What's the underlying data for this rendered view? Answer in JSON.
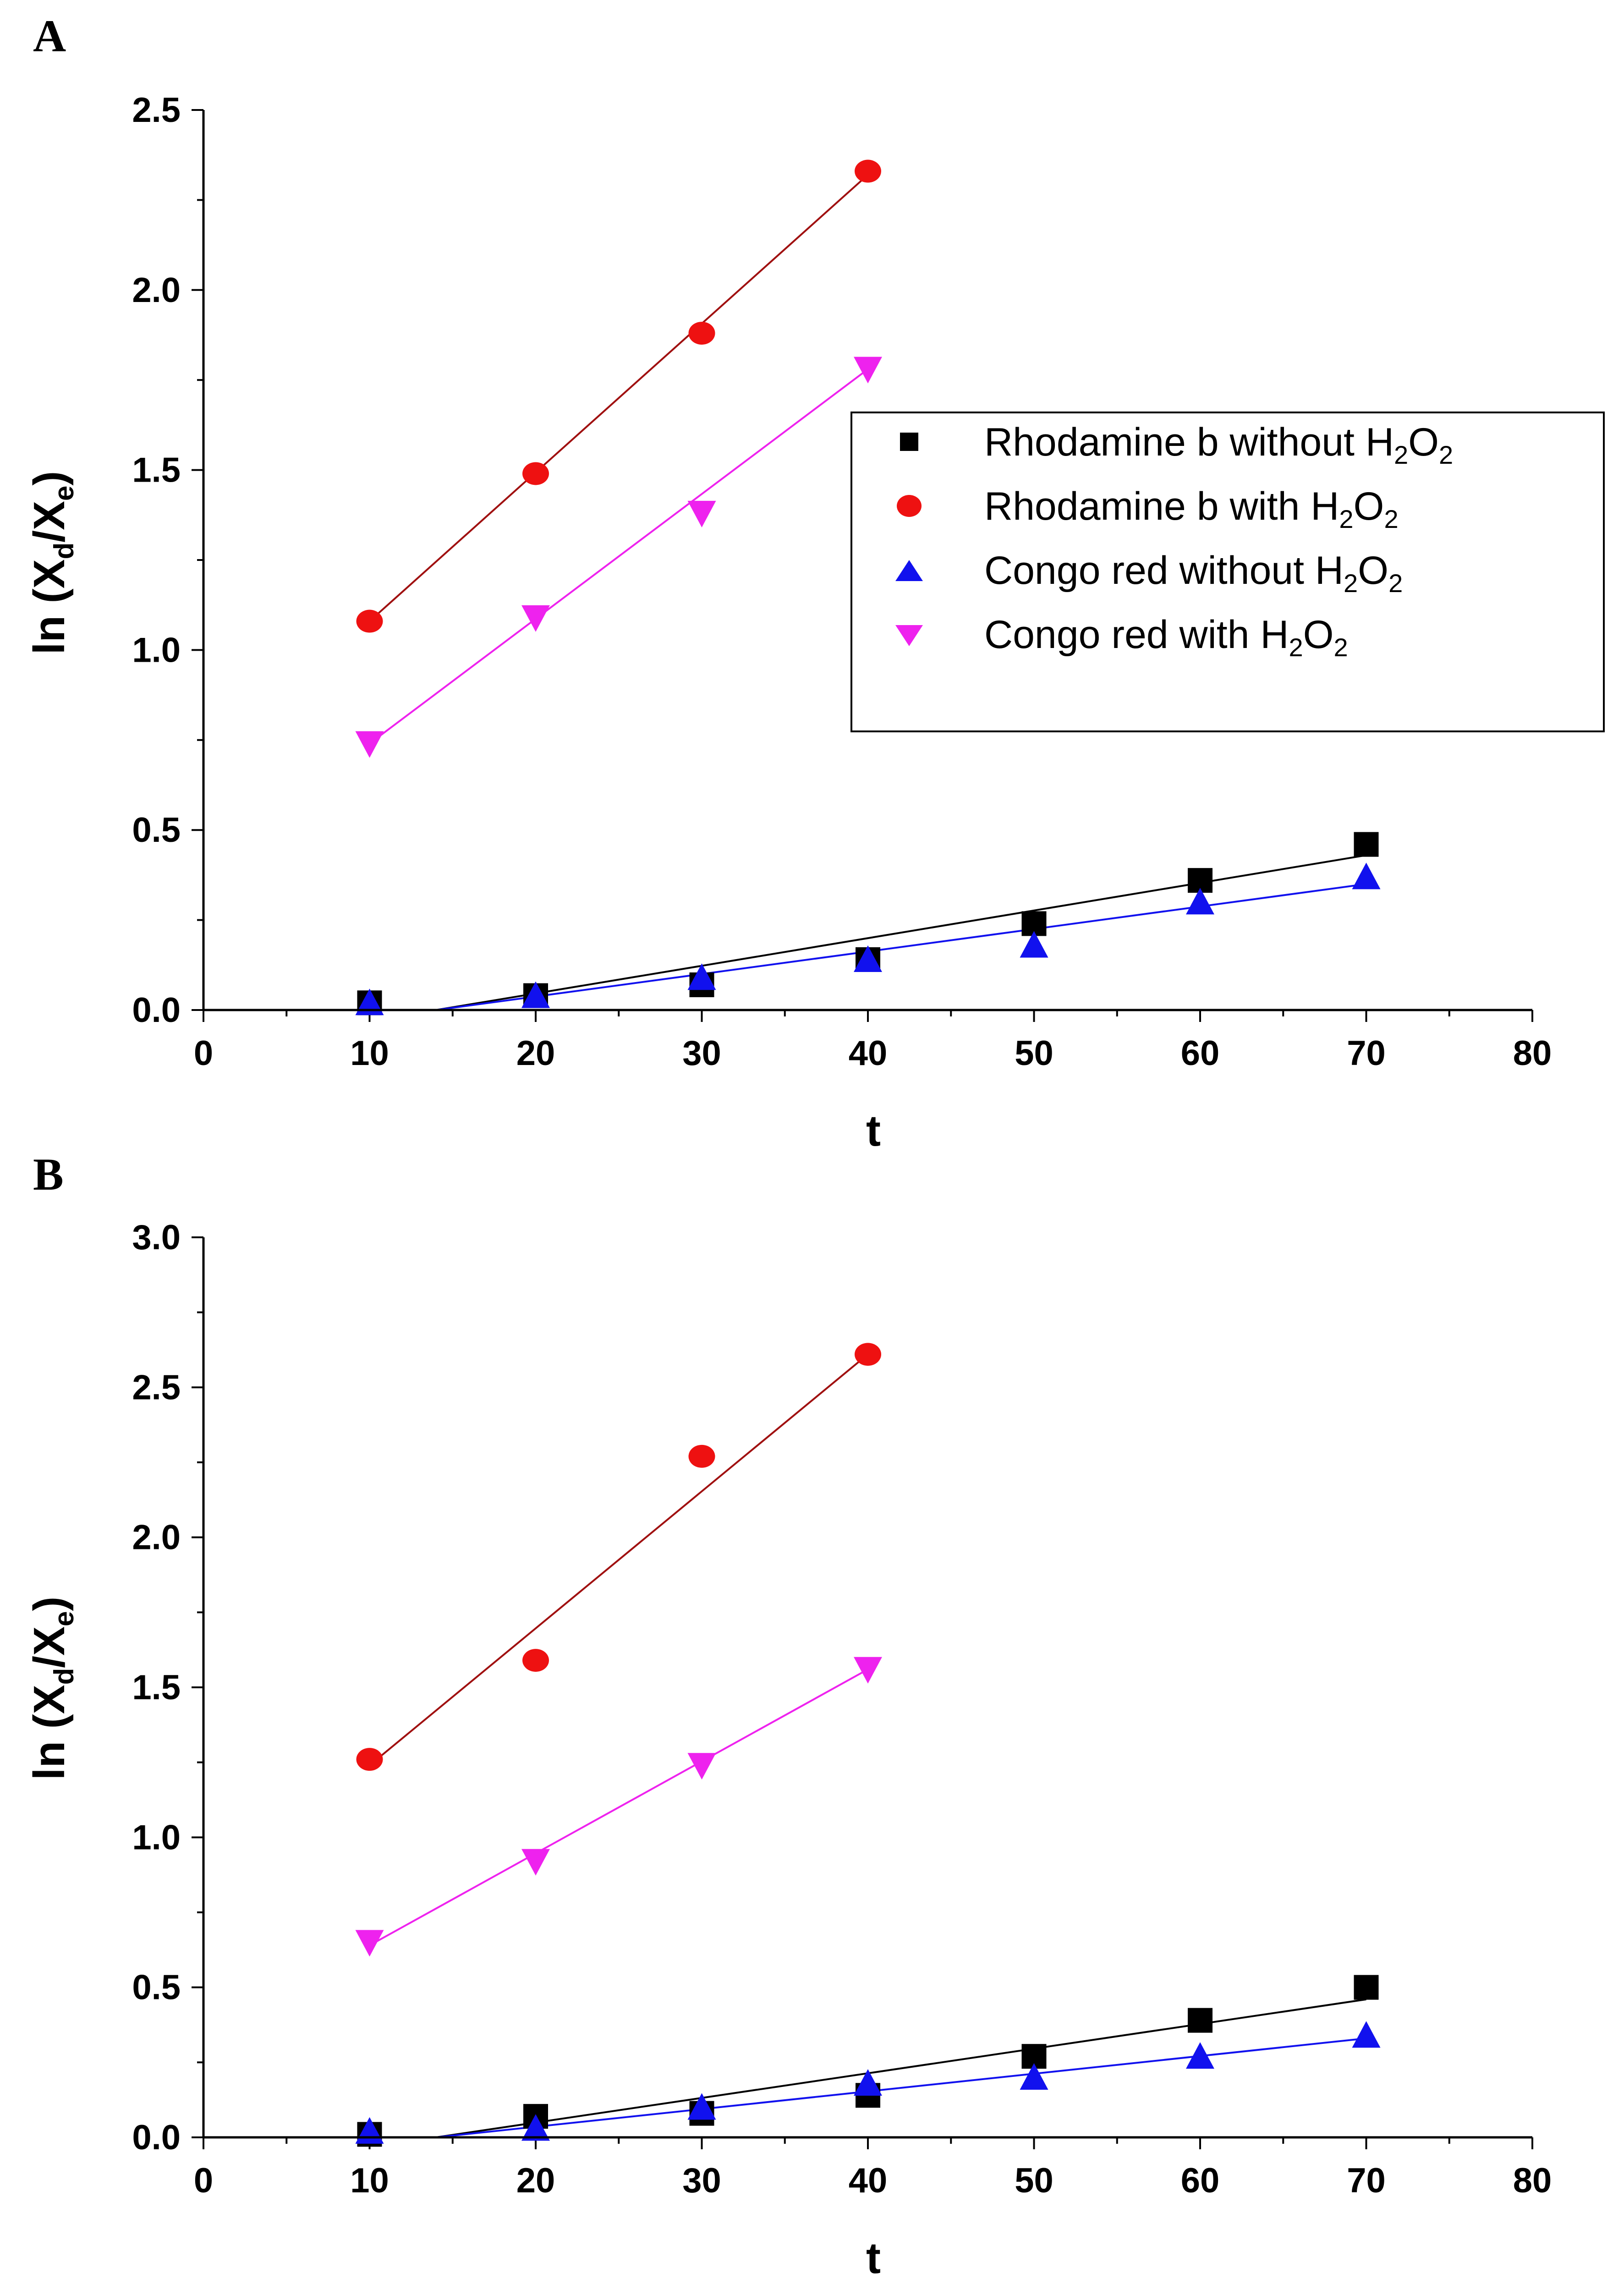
{
  "chart_data": [
    {
      "panel_label": "A",
      "type": "scatter",
      "xlabel": "t",
      "ylabel_main": "ln (X",
      "ylabel_sub1": "d",
      "ylabel_mid": "/X",
      "ylabel_sub2": "e",
      "ylabel_end": ")",
      "xlim": [
        0,
        80
      ],
      "ylim": [
        0,
        2.5
      ],
      "xticks": [
        0,
        10,
        20,
        30,
        40,
        50,
        60,
        70,
        80
      ],
      "xtick_labels": [
        "0",
        "10",
        "20",
        "30",
        "40",
        "50",
        "60",
        "70",
        "80"
      ],
      "yticks": [
        0,
        0.5,
        1.0,
        1.5,
        2.0,
        2.5
      ],
      "ytick_labels": [
        "0.0",
        "0.5",
        "1.0",
        "1.5",
        "2.0",
        "2.5"
      ],
      "legend_position": "upper-right",
      "series": [
        {
          "name_main": "Rhodamine b without H",
          "name_tail": "O",
          "color": "#000000",
          "marker": "square",
          "x": [
            10,
            20,
            30,
            40,
            50,
            60,
            70
          ],
          "y": [
            0.02,
            0.04,
            0.07,
            0.14,
            0.24,
            0.36,
            0.46
          ],
          "fit_x": [
            14,
            70
          ],
          "fit_y": [
            0,
            0.43
          ]
        },
        {
          "name_main": "Rhodamine b with H",
          "name_tail": "O",
          "color": "#ee1111",
          "line_color": "#a01010",
          "marker": "circle",
          "x": [
            10,
            20,
            30,
            40
          ],
          "y": [
            1.08,
            1.49,
            1.88,
            2.33
          ],
          "fit_x": [
            10,
            40
          ],
          "fit_y": [
            1.08,
            2.32
          ]
        },
        {
          "name_main": "Congo red without H",
          "name_tail": "O",
          "color": "#1111ee",
          "marker": "triangle-up",
          "x": [
            10,
            20,
            30,
            40,
            50,
            60,
            70
          ],
          "y": [
            0.02,
            0.04,
            0.09,
            0.14,
            0.18,
            0.3,
            0.37
          ],
          "fit_x": [
            14,
            70
          ],
          "fit_y": [
            0,
            0.35
          ]
        },
        {
          "name_main": "Congo red with H",
          "name_tail": "O",
          "color": "#ee22ee",
          "marker": "triangle-down",
          "x": [
            10,
            20,
            30,
            40
          ],
          "y": [
            0.74,
            1.09,
            1.38,
            1.78
          ],
          "fit_x": [
            10,
            40
          ],
          "fit_y": [
            0.74,
            1.78
          ]
        }
      ]
    },
    {
      "panel_label": "B",
      "type": "scatter",
      "xlabel": "t",
      "ylabel_main": "ln (X",
      "ylabel_sub1": "d",
      "ylabel_mid": "/X",
      "ylabel_sub2": "e",
      "ylabel_end": ")",
      "xlim": [
        0,
        80
      ],
      "ylim": [
        0,
        3.0
      ],
      "xticks": [
        0,
        10,
        20,
        30,
        40,
        50,
        60,
        70,
        80
      ],
      "xtick_labels": [
        "0",
        "10",
        "20",
        "30",
        "40",
        "50",
        "60",
        "70",
        "80"
      ],
      "yticks": [
        0,
        0.5,
        1.0,
        1.5,
        2.0,
        2.5,
        3.0
      ],
      "ytick_labels": [
        "0.0",
        "0.5",
        "1.0",
        "1.5",
        "2.0",
        "2.5",
        "3.0"
      ],
      "series": [
        {
          "name_main": "Rhodamine b without H",
          "name_tail": "O",
          "color": "#000000",
          "marker": "square",
          "x": [
            10,
            20,
            30,
            40,
            50,
            60,
            70
          ],
          "y": [
            0.01,
            0.07,
            0.08,
            0.14,
            0.27,
            0.39,
            0.5
          ],
          "fit_x": [
            14,
            70
          ],
          "fit_y": [
            0,
            0.46
          ]
        },
        {
          "name_main": "Rhodamine b with H",
          "name_tail": "O",
          "color": "#ee1111",
          "line_color": "#a01010",
          "marker": "circle",
          "x": [
            10,
            20,
            30,
            40
          ],
          "y": [
            1.26,
            1.59,
            2.27,
            2.61
          ],
          "fit_x": [
            10,
            40
          ],
          "fit_y": [
            1.24,
            2.61
          ]
        },
        {
          "name_main": "Congo red without H",
          "name_tail": "O",
          "color": "#1111ee",
          "marker": "triangle-up",
          "x": [
            10,
            20,
            30,
            40,
            50,
            60,
            70
          ],
          "y": [
            0.02,
            0.03,
            0.1,
            0.18,
            0.2,
            0.27,
            0.34
          ],
          "fit_x": [
            14,
            70
          ],
          "fit_y": [
            0,
            0.33
          ]
        },
        {
          "name_main": "Congo red with H",
          "name_tail": "O",
          "color": "#ee22ee",
          "marker": "triangle-down",
          "x": [
            10,
            20,
            30,
            40
          ],
          "y": [
            0.65,
            0.92,
            1.24,
            1.56
          ],
          "fit_x": [
            10,
            40
          ],
          "fit_y": [
            0.64,
            1.56
          ]
        }
      ]
    }
  ],
  "legend": {
    "subscript": "2",
    "items": [
      {
        "label_main": "Rhodamine b without H",
        "label_tail": "O"
      },
      {
        "label_main": "Rhodamine b with H",
        "label_tail": "O"
      },
      {
        "label_main": "Congo red without H",
        "label_tail": "O"
      },
      {
        "label_main": "Congo red with H",
        "label_tail": "O"
      }
    ]
  }
}
